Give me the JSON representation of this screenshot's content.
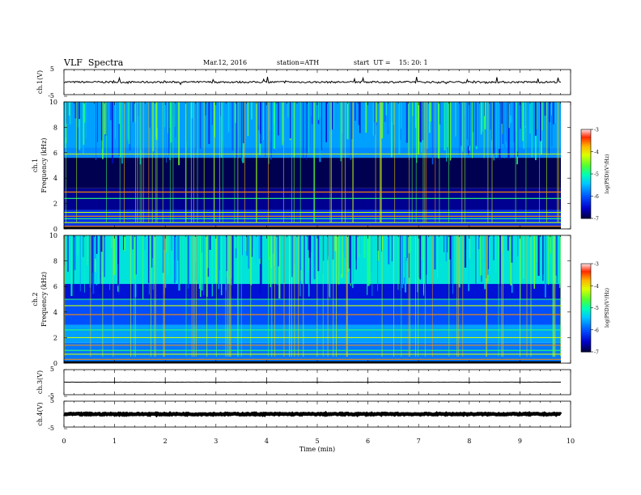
{
  "header": {
    "title": "VLF  Spectra",
    "date": "Mar.12, 2016",
    "station": "station=ATH",
    "start": "start  UT =    15: 20: 1"
  },
  "chart_data": {
    "type": "heatmap",
    "x_label": "Time  (min)",
    "x_ticks": [
      "0",
      "1",
      "2",
      "3",
      "4",
      "5",
      "6",
      "7",
      "8",
      "9",
      "10"
    ],
    "xlim": [
      0,
      10
    ],
    "panels": [
      {
        "id": "ch1_waveform",
        "type": "line",
        "ylabel": "ch.1(V)",
        "ylim": [
          -5,
          5
        ],
        "y_tick_labels": [
          "5",
          "-5"
        ],
        "approx_level": 0,
        "noise_band": 0.4
      },
      {
        "id": "ch1_spectrogram",
        "type": "heatmap",
        "ylabel": "Frequency  (kHz)",
        "channel_label": "ch.1",
        "ylim": [
          0,
          10
        ],
        "y_tick_labels": [
          "0",
          "2",
          "4",
          "6",
          "8",
          "10"
        ],
        "colorbar": {
          "label": "log(PSD)(V²/Hz)",
          "ticks": [
            "-3",
            "-4",
            "-5",
            "-6",
            "-7"
          ],
          "range": [
            -7,
            -3
          ]
        },
        "bands": [
          {
            "from": 0.0,
            "to": 1.5,
            "logpsd": -6.2
          },
          {
            "from": 1.5,
            "to": 3.2,
            "logpsd": -6.7
          },
          {
            "from": 3.2,
            "to": 5.6,
            "logpsd": -6.9
          },
          {
            "from": 5.6,
            "to": 6.4,
            "logpsd": -5.7
          },
          {
            "from": 6.4,
            "to": 10.0,
            "logpsd": -5.6
          }
        ],
        "lines_khz": [
          0.2,
          0.5,
          0.8,
          1.0,
          1.3,
          2.4,
          2.9,
          5.9
        ]
      },
      {
        "id": "ch2_spectrogram",
        "type": "heatmap",
        "ylabel": "Frequency  (kHz)",
        "channel_label": "ch.2",
        "ylim": [
          0,
          10
        ],
        "y_tick_labels": [
          "0",
          "2",
          "4",
          "6",
          "8",
          "10"
        ],
        "colorbar": {
          "label": "log(PSD)(V²/Hz)",
          "ticks": [
            "-3",
            "-4",
            "-5",
            "-6",
            "-7"
          ],
          "range": [
            -7,
            -3
          ]
        },
        "bands": [
          {
            "from": 0.0,
            "to": 1.6,
            "logpsd": -5.8
          },
          {
            "from": 1.6,
            "to": 3.0,
            "logpsd": -5.6
          },
          {
            "from": 3.0,
            "to": 5.0,
            "logpsd": -6.0
          },
          {
            "from": 5.0,
            "to": 6.2,
            "logpsd": -6.4
          },
          {
            "from": 6.2,
            "to": 10.0,
            "logpsd": -5.2
          }
        ],
        "lines_khz": [
          0.3,
          0.7,
          1.0,
          1.4,
          2.0,
          2.6,
          3.8,
          4.5,
          5.0
        ]
      },
      {
        "id": "ch3_waveform",
        "type": "line",
        "ylabel": "ch.3(V)",
        "ylim": [
          -5,
          5
        ],
        "y_tick_labels": [
          "5",
          "-5"
        ],
        "approx_level": 0,
        "noise_band": 0.05
      },
      {
        "id": "ch4_waveform",
        "type": "line",
        "ylabel": "ch.4(V)",
        "ylim": [
          -5,
          5
        ],
        "y_tick_labels": [
          "5",
          "-5"
        ],
        "approx_level": 0,
        "noise_band": 0.25
      }
    ]
  }
}
